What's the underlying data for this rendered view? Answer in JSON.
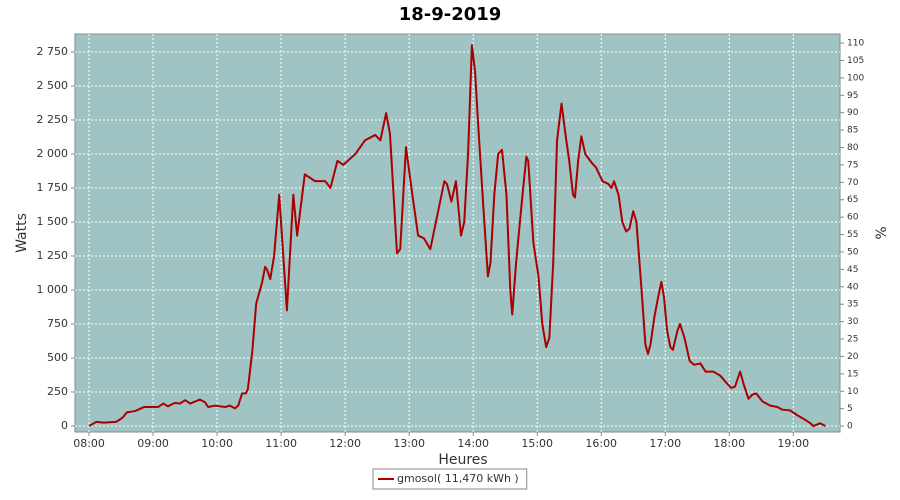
{
  "chart_data": {
    "type": "line",
    "title": "18-9-2019",
    "xlabel": "Heures",
    "ylabel": "Watts",
    "y2label": "%",
    "background": "#a0c4c4",
    "grid": true,
    "legend": "bottom",
    "xlim": [
      7.78,
      19.73
    ],
    "xticks": [
      {
        "value": 8,
        "label": "08:00"
      },
      {
        "value": 9,
        "label": "09:00"
      },
      {
        "value": 10,
        "label": "10:00"
      },
      {
        "value": 11,
        "label": "11:00"
      },
      {
        "value": 12,
        "label": "12:00"
      },
      {
        "value": 13,
        "label": "13:00"
      },
      {
        "value": 14,
        "label": "14:00"
      },
      {
        "value": 15,
        "label": "15:00"
      },
      {
        "value": 16,
        "label": "16:00"
      },
      {
        "value": 17,
        "label": "17:00"
      },
      {
        "value": 18,
        "label": "18:00"
      },
      {
        "value": 19,
        "label": "19:00"
      }
    ],
    "ylim": [
      -44,
      2882
    ],
    "yticks": [
      0,
      250,
      500,
      750,
      {
        "value": 1000,
        "label": "1 000"
      },
      {
        "value": 1250,
        "label": "1 250"
      },
      {
        "value": 1500,
        "label": "1 500"
      },
      {
        "value": 1750,
        "label": "1 750"
      },
      {
        "value": 2000,
        "label": "2 000"
      },
      {
        "value": 2250,
        "label": "2 250"
      },
      {
        "value": 2500,
        "label": "2 500"
      },
      {
        "value": 2750,
        "label": "2 750"
      }
    ],
    "y2lim": [
      -1.7,
      112.6
    ],
    "y2ticks": [
      0,
      5,
      10,
      15,
      20,
      25,
      30,
      35,
      40,
      45,
      50,
      55,
      60,
      65,
      70,
      75,
      80,
      85,
      90,
      95,
      100,
      105,
      110
    ],
    "x": [
      8.0,
      8.11,
      8.23,
      8.42,
      8.52,
      8.59,
      8.72,
      8.86,
      9.08,
      9.16,
      9.23,
      9.34,
      9.42,
      9.5,
      9.58,
      9.73,
      9.81,
      9.86,
      9.97,
      10.13,
      10.2,
      10.28,
      10.33,
      10.39,
      10.45,
      10.48,
      10.55,
      10.61,
      10.7,
      10.75,
      10.78,
      10.83,
      10.89,
      10.97,
      11.09,
      11.19,
      11.25,
      11.37,
      11.53,
      11.69,
      11.77,
      11.88,
      11.97,
      12.16,
      12.31,
      12.47,
      12.55,
      12.64,
      12.7,
      12.81,
      12.86,
      12.95,
      13.05,
      13.14,
      13.23,
      13.33,
      13.44,
      13.55,
      13.59,
      13.66,
      13.73,
      13.81,
      13.86,
      13.92,
      13.98,
      14.03,
      14.08,
      14.16,
      14.23,
      14.27,
      14.33,
      14.39,
      14.45,
      14.52,
      14.58,
      14.61,
      14.67,
      14.75,
      14.83,
      14.86,
      14.94,
      15.02,
      15.08,
      15.14,
      15.19,
      15.25,
      15.31,
      15.38,
      15.44,
      15.5,
      15.56,
      15.59,
      15.64,
      15.69,
      15.75,
      15.86,
      15.92,
      16.02,
      16.11,
      16.16,
      16.2,
      16.27,
      16.33,
      16.39,
      16.44,
      16.5,
      16.55,
      16.63,
      16.69,
      16.73,
      16.77,
      16.83,
      16.89,
      16.94,
      16.98,
      17.03,
      17.08,
      17.12,
      17.19,
      17.23,
      17.3,
      17.38,
      17.45,
      17.55,
      17.63,
      17.75,
      17.86,
      17.95,
      18.03,
      18.09,
      18.17,
      18.23,
      18.3,
      18.36,
      18.42,
      18.52,
      18.64,
      18.75,
      18.83,
      18.95,
      19.06,
      19.17,
      19.27,
      19.31,
      19.42,
      19.5
    ],
    "series": [
      {
        "name": "gmosol( 11,470 kWh )",
        "color": "#aa0000",
        "values": [
          0,
          30,
          25,
          30,
          60,
          100,
          110,
          140,
          140,
          165,
          145,
          170,
          165,
          190,
          165,
          195,
          175,
          140,
          150,
          140,
          150,
          130,
          150,
          240,
          240,
          270,
          550,
          900,
          1050,
          1170,
          1150,
          1080,
          1250,
          1700,
          850,
          1700,
          1400,
          1850,
          1800,
          1800,
          1750,
          1950,
          1920,
          2000,
          2100,
          2140,
          2100,
          2300,
          2150,
          1270,
          1300,
          2050,
          1700,
          1400,
          1380,
          1300,
          1550,
          1800,
          1780,
          1650,
          1800,
          1400,
          1500,
          2000,
          2800,
          2600,
          2200,
          1600,
          1100,
          1200,
          1700,
          2000,
          2030,
          1700,
          1000,
          820,
          1200,
          1600,
          1980,
          1950,
          1350,
          1100,
          750,
          580,
          650,
          1200,
          2100,
          2370,
          2150,
          1950,
          1700,
          1680,
          1950,
          2130,
          2000,
          1930,
          1900,
          1800,
          1780,
          1750,
          1800,
          1700,
          1500,
          1430,
          1450,
          1580,
          1500,
          1000,
          600,
          530,
          600,
          800,
          950,
          1060,
          950,
          700,
          580,
          560,
          700,
          750,
          650,
          480,
          450,
          460,
          400,
          400,
          370,
          320,
          280,
          290,
          400,
          300,
          200,
          230,
          240,
          180,
          150,
          140,
          120,
          115,
          80,
          50,
          20,
          0,
          20,
          0
        ]
      }
    ]
  }
}
